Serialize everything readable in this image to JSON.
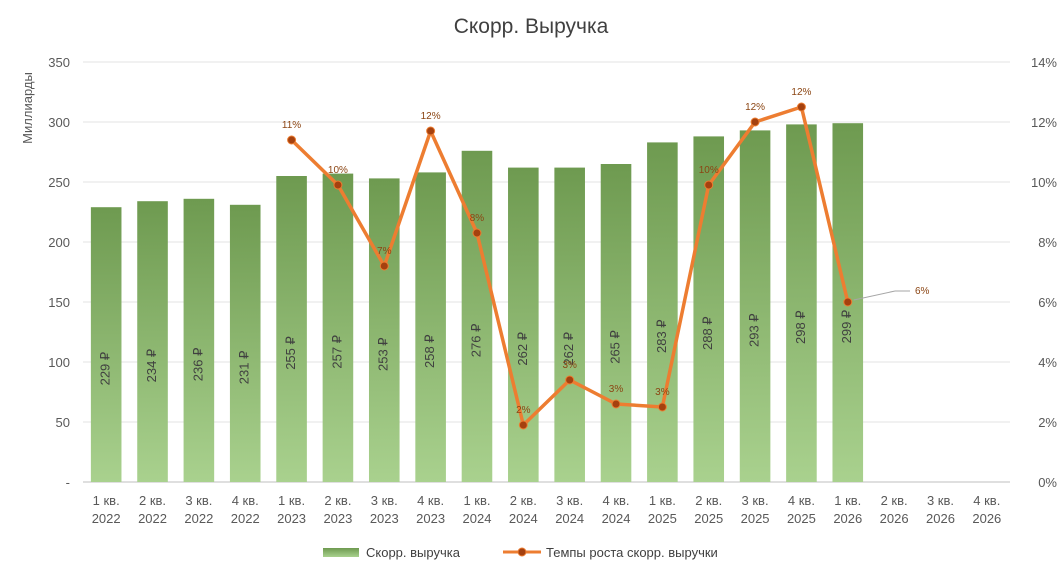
{
  "chart_data": {
    "type": "bar",
    "title": "Скорр. Выручка",
    "ylabel": "Миллиарды",
    "ylim": [
      0,
      350
    ],
    "y_ticks": [
      "-",
      "50",
      "100",
      "150",
      "200",
      "250",
      "300",
      "350"
    ],
    "y2lim": [
      0,
      14
    ],
    "y2_ticks": [
      "0%",
      "2%",
      "4%",
      "6%",
      "8%",
      "10%",
      "12%",
      "14%"
    ],
    "categories": [
      [
        "1 кв.",
        "2022"
      ],
      [
        "2 кв.",
        "2022"
      ],
      [
        "3 кв.",
        "2022"
      ],
      [
        "4 кв.",
        "2022"
      ],
      [
        "1 кв.",
        "2023"
      ],
      [
        "2 кв.",
        "2023"
      ],
      [
        "3 кв.",
        "2023"
      ],
      [
        "4 кв.",
        "2023"
      ],
      [
        "1 кв.",
        "2024"
      ],
      [
        "2 кв.",
        "2024"
      ],
      [
        "3 кв.",
        "2024"
      ],
      [
        "4 кв.",
        "2024"
      ],
      [
        "1 кв.",
        "2025"
      ],
      [
        "2 кв.",
        "2025"
      ],
      [
        "3 кв.",
        "2025"
      ],
      [
        "4 кв.",
        "2025"
      ],
      [
        "1 кв.",
        "2026"
      ],
      [
        "2 кв.",
        "2026"
      ],
      [
        "3 кв.",
        "2026"
      ],
      [
        "4 кв.",
        "2026"
      ]
    ],
    "series": [
      {
        "name": "Скорр. выручка",
        "type": "bar",
        "axis": "left",
        "color": "#8DB96B",
        "values": [
          229,
          234,
          236,
          231,
          255,
          257,
          253,
          258,
          276,
          262,
          262,
          265,
          283,
          288,
          293,
          298,
          299,
          null,
          null,
          null
        ],
        "labels": [
          "229 ₽",
          "234 ₽",
          "236 ₽",
          "231 ₽",
          "255 ₽",
          "257 ₽",
          "253 ₽",
          "258 ₽",
          "276 ₽",
          "262 ₽",
          "262 ₽",
          "265 ₽",
          "283 ₽",
          "288 ₽",
          "293 ₽",
          "298 ₽",
          "299 ₽",
          null,
          null,
          null
        ]
      },
      {
        "name": "Темпы роста скорр. выручки",
        "type": "line",
        "axis": "right",
        "color": "#ED7D31",
        "marker_color": "#A5410F",
        "values": [
          null,
          null,
          null,
          null,
          11.4,
          9.9,
          7.2,
          11.7,
          8.3,
          1.9,
          3.4,
          2.6,
          2.5,
          9.9,
          12.0,
          12.5,
          6.0,
          null,
          null,
          null
        ],
        "labels": [
          null,
          null,
          null,
          null,
          "11%",
          "10%",
          "7%",
          "12%",
          "8%",
          "2%",
          "3%",
          "3%",
          "3%",
          "10%",
          "12%",
          "12%",
          "6%",
          null,
          null,
          null
        ]
      }
    ],
    "legend_position": "bottom",
    "grid": true
  }
}
